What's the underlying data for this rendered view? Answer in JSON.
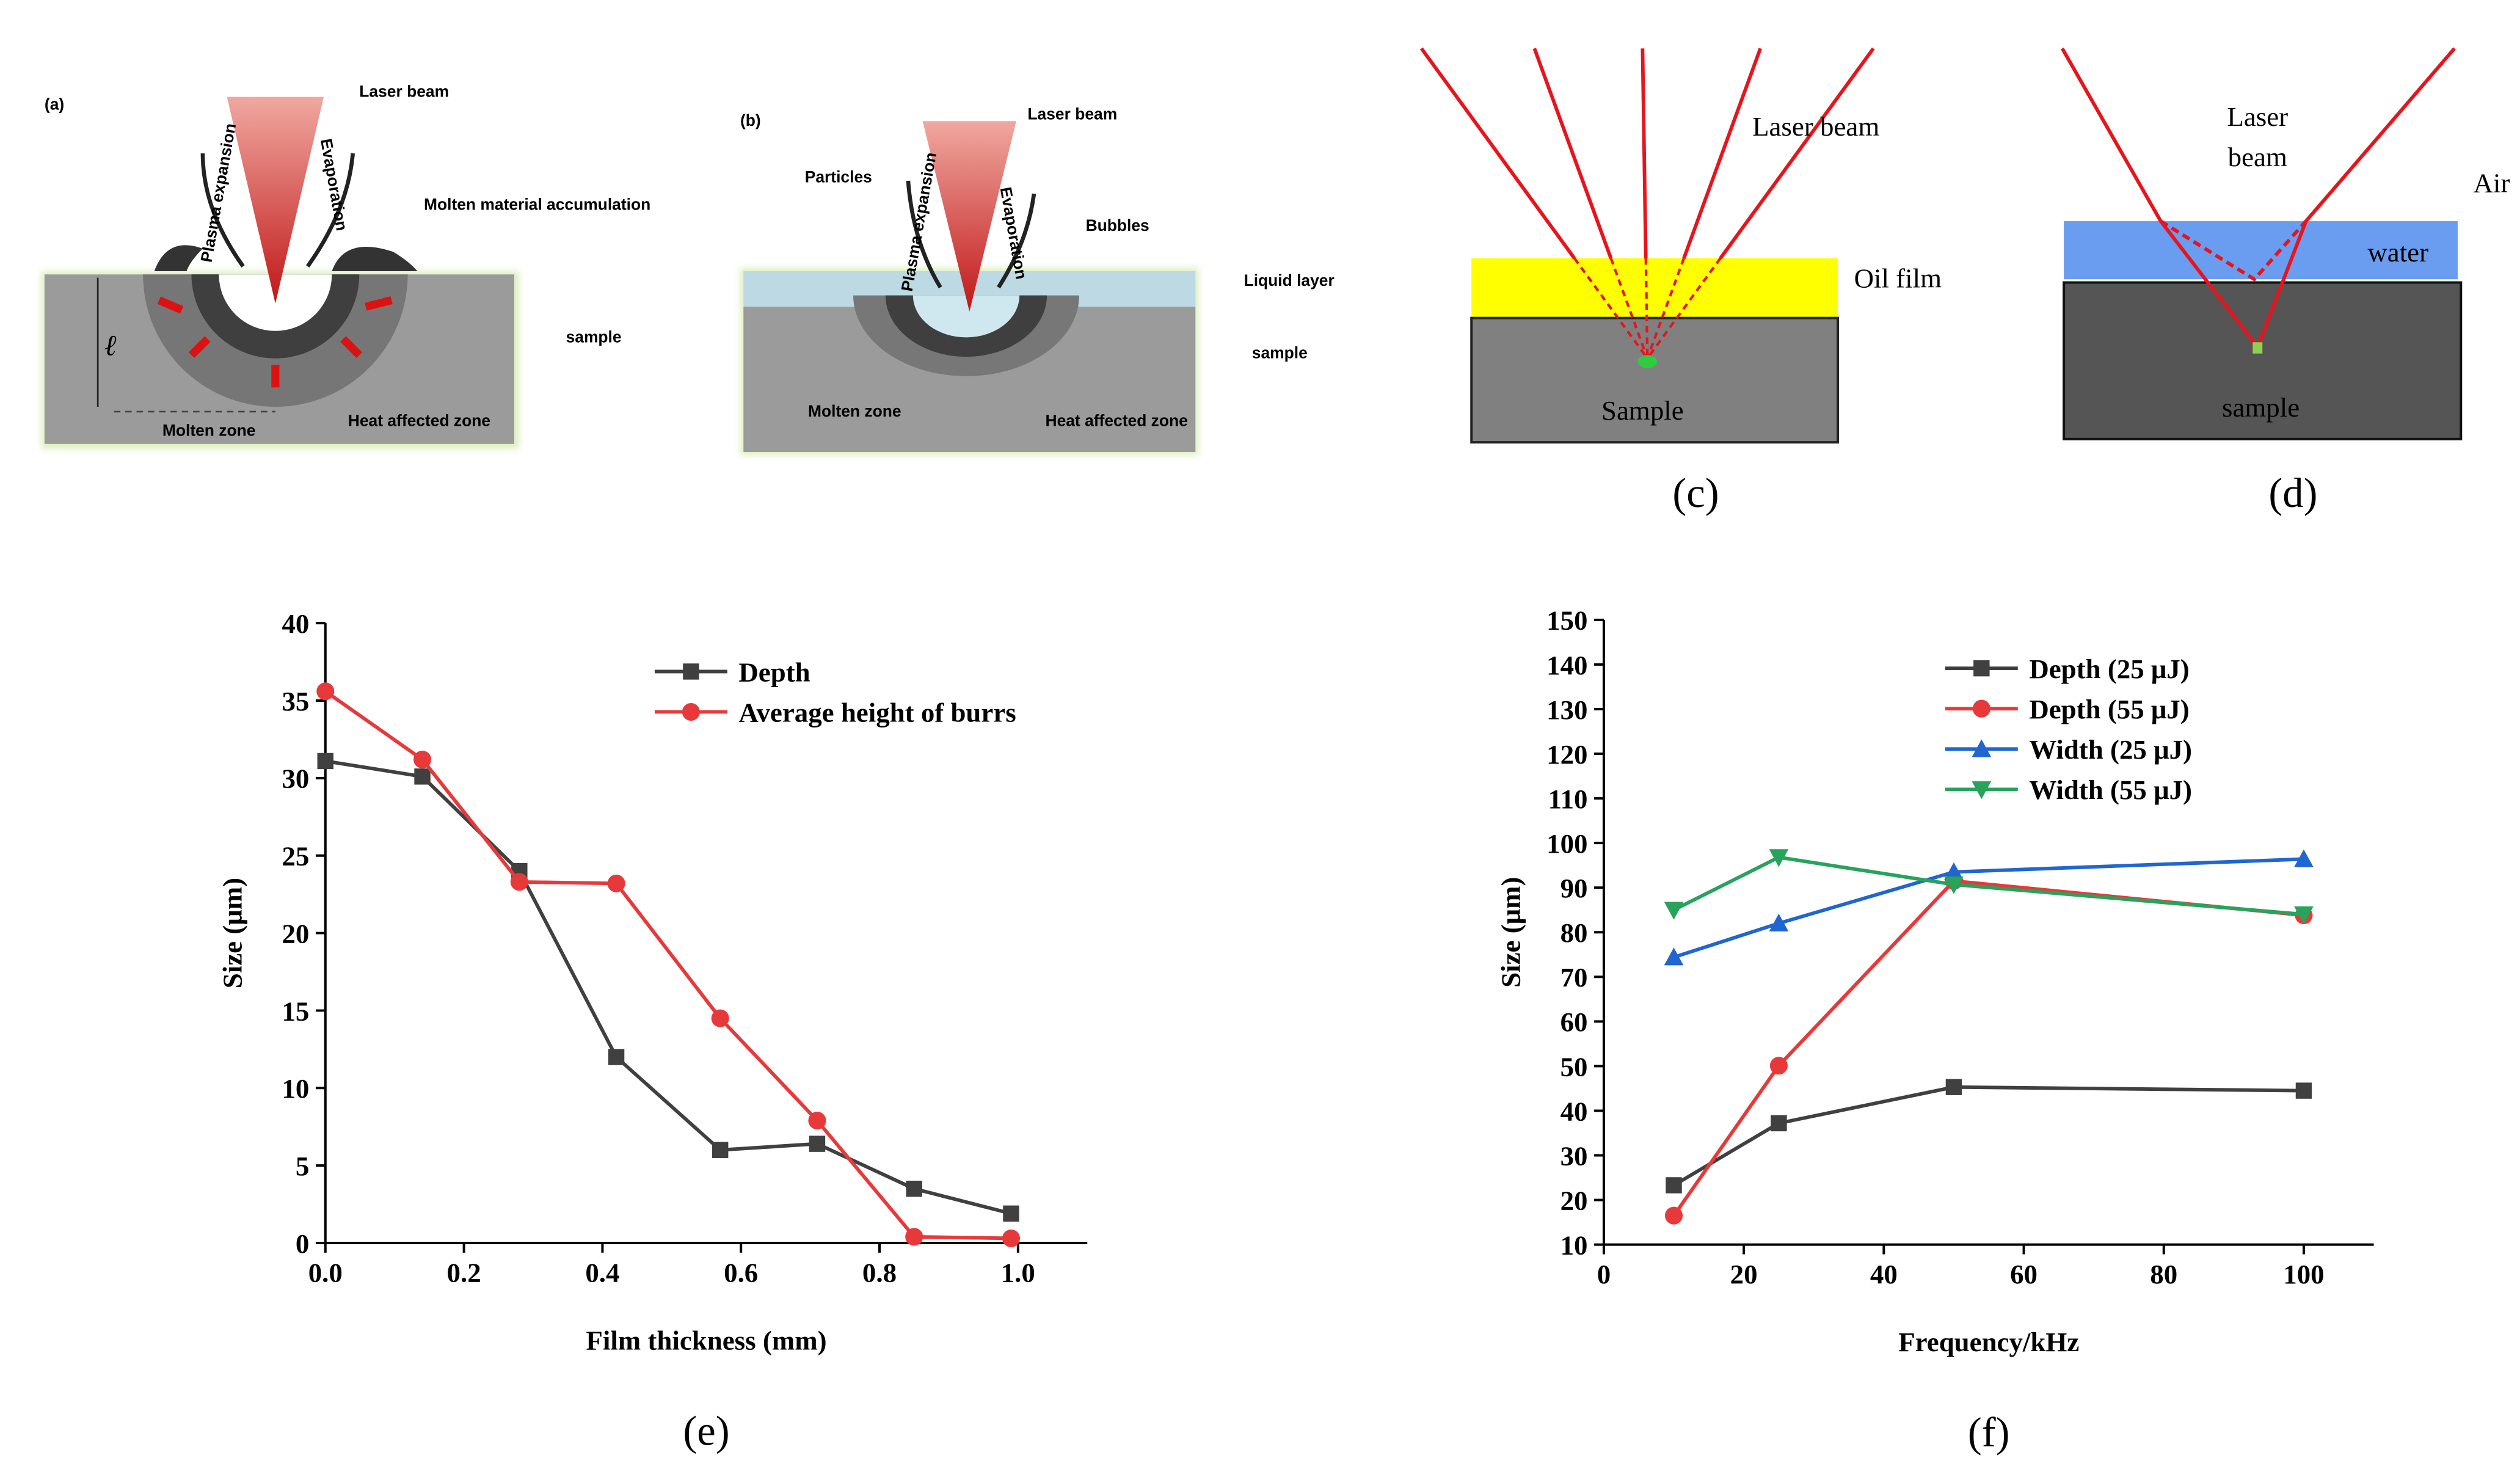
{
  "diagrams": {
    "a": {
      "label": "(a)",
      "laser_beam": "Laser beam",
      "plasma": "Plasma expansion",
      "evaporation": "Evaporation",
      "accumulation": "Molten material accumulation",
      "sample": "sample",
      "molten_zone": "Molten zone",
      "heat_zone": "Heat affected zone",
      "depth_symbol": "ℓ"
    },
    "b": {
      "label": "(b)",
      "laser_beam": "Laser beam",
      "particles": "Particles",
      "plasma": "Plasma expansion",
      "evaporation": "Evaporation",
      "bubbles": "Bubbles",
      "liquid_layer": "Liquid layer",
      "sample": "sample",
      "molten_zone": "Molten zone",
      "heat_zone": "Heat affected zone"
    },
    "c": {
      "label": "(c)",
      "laser_beam": "Laser beam",
      "oil_film": "Oil film",
      "sample": "Sample"
    },
    "d": {
      "label": "(d)",
      "laser_beam_lines": [
        "Laser",
        "beam"
      ],
      "air": "Air",
      "water": "water",
      "sample": "sample"
    }
  },
  "chart_data": [
    {
      "type": "line",
      "panel_label": "(e)",
      "xlabel": "Film thickness (mm)",
      "ylabel": "Size (μm)",
      "x": [
        0,
        0.14,
        0.28,
        0.42,
        0.57,
        0.71,
        0.85,
        0.99
      ],
      "series": [
        {
          "name": "Depth",
          "color": "#404040",
          "marker": "square",
          "values": [
            31.1,
            30.1,
            24.0,
            12.0,
            6.0,
            6.4,
            3.5,
            1.9
          ]
        },
        {
          "name": "Average height of burrs",
          "color": "#e8393a",
          "marker": "circle",
          "values": [
            35.6,
            31.2,
            23.3,
            23.2,
            14.5,
            7.9,
            0.4,
            0.3
          ]
        }
      ],
      "xlim": [
        0,
        1.1
      ],
      "ylim": [
        0,
        40
      ],
      "xticks": [
        {
          "value": 0,
          "label": "0.0"
        },
        0.2,
        0.4,
        0.6,
        0.8,
        {
          "value": 1,
          "label": "1.0"
        }
      ],
      "yticks": [
        0,
        5,
        10,
        15,
        20,
        25,
        30,
        35,
        40
      ],
      "legend": "upper right"
    },
    {
      "type": "line",
      "panel_label": "(f)",
      "xlabel": "Frequency/kHz",
      "ylabel": "Size (μm)",
      "x": [
        10,
        25,
        50,
        100
      ],
      "series": [
        {
          "name": "Depth (25 μJ)",
          "color": "#404040",
          "marker": "square",
          "values": [
            23.3,
            37.2,
            45.3,
            44.5
          ]
        },
        {
          "name": "Depth (55 μJ)",
          "color": "#e8393a",
          "marker": "circle",
          "values": [
            16.5,
            50.1,
            91.5,
            83.8
          ]
        },
        {
          "name": "Width (25 μJ)",
          "color": "#1f66d1",
          "marker": "triangle-up",
          "values": [
            74.4,
            82.0,
            93.5,
            96.4
          ]
        },
        {
          "name": "Width  (55 μJ)",
          "color": "#27a35b",
          "marker": "triangle-down",
          "values": [
            85.0,
            96.8,
            90.7,
            84.0
          ]
        }
      ],
      "xlim": [
        0,
        110
      ],
      "ylim": [
        10,
        150
      ],
      "xticks": [
        0,
        20,
        40,
        60,
        80,
        100
      ],
      "yticks": [
        10,
        20,
        30,
        40,
        50,
        60,
        70,
        80,
        90,
        100,
        110,
        120,
        130,
        140,
        150
      ],
      "legend": "upper center"
    }
  ]
}
